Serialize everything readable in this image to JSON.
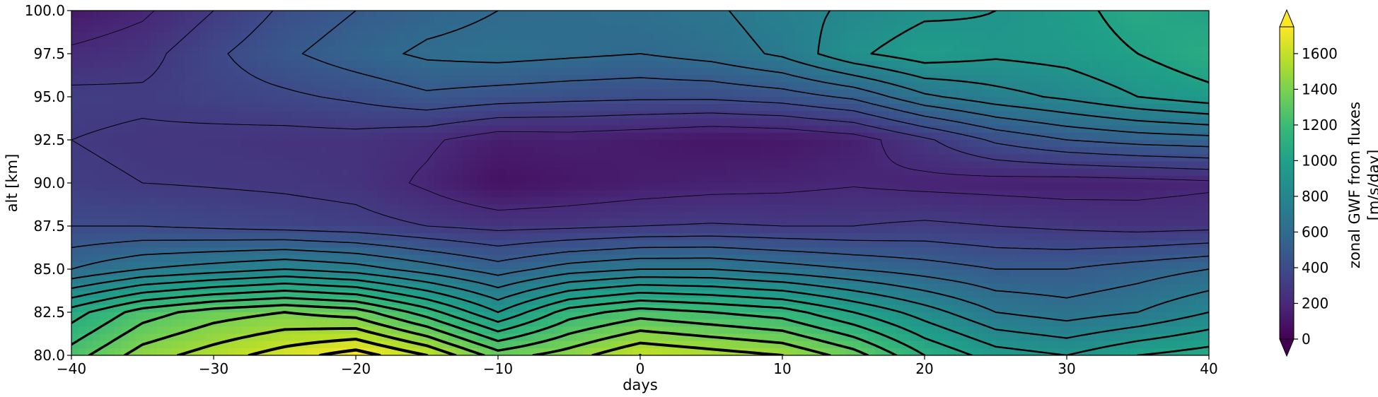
{
  "chart_data": {
    "type": "heatmap",
    "title": "",
    "xlabel": "days",
    "ylabel": "alt [km]",
    "xlim": [
      -40,
      40
    ],
    "ylim": [
      80,
      100
    ],
    "x_ticks": [
      "−40",
      "−30",
      "−20",
      "−10",
      "0",
      "10",
      "20",
      "30",
      "40"
    ],
    "x_tick_values": [
      -40,
      -30,
      -20,
      -10,
      0,
      10,
      20,
      30,
      40
    ],
    "y_ticks": [
      "80.0",
      "82.5",
      "85.0",
      "87.5",
      "90.0",
      "92.5",
      "95.0",
      "97.5",
      "100.0"
    ],
    "y_tick_values": [
      80,
      82.5,
      85,
      87.5,
      90,
      92.5,
      95,
      97.5,
      100
    ],
    "colorbar": {
      "label_line1": "zonal GWF from fluxes",
      "label_line2": "[m/s/day]",
      "colormap": "viridis",
      "range": [
        0,
        1750
      ],
      "extend": "both",
      "ticks": [
        "0",
        "200",
        "400",
        "600",
        "800",
        "1000",
        "1200",
        "1400",
        "1600"
      ],
      "tick_values": [
        0,
        200,
        400,
        600,
        800,
        1000,
        1200,
        1400,
        1600
      ]
    },
    "grid_x": [
      -40,
      -35,
      -30,
      -25,
      -20,
      -15,
      -10,
      -5,
      0,
      5,
      10,
      15,
      20,
      25,
      30,
      35,
      40
    ],
    "grid_y": [
      80,
      82.5,
      85,
      87.5,
      90,
      92.5,
      95,
      97.5,
      100
    ],
    "z": [
      [
        1250,
        1450,
        1550,
        1650,
        1750,
        1600,
        1350,
        1450,
        1600,
        1550,
        1500,
        1350,
        1100,
        950,
        900,
        1000,
        1050
      ],
      [
        1050,
        1250,
        1350,
        1400,
        1350,
        1150,
        900,
        1150,
        1250,
        1200,
        1150,
        1000,
        850,
        700,
        650,
        700,
        800
      ],
      [
        600,
        700,
        750,
        800,
        750,
        650,
        550,
        650,
        700,
        700,
        650,
        600,
        550,
        500,
        500,
        550,
        600
      ],
      [
        400,
        400,
        380,
        360,
        340,
        300,
        270,
        280,
        300,
        310,
        300,
        300,
        320,
        300,
        280,
        260,
        270
      ],
      [
        320,
        300,
        290,
        280,
        260,
        180,
        80,
        110,
        140,
        160,
        170,
        190,
        170,
        160,
        150,
        160,
        180
      ],
      [
        300,
        280,
        270,
        260,
        260,
        220,
        140,
        150,
        130,
        100,
        110,
        150,
        280,
        420,
        500,
        540,
        560
      ],
      [
        330,
        320,
        350,
        380,
        420,
        480,
        450,
        430,
        420,
        420,
        450,
        520,
        680,
        760,
        820,
        900,
        960
      ],
      [
        220,
        260,
        380,
        480,
        560,
        620,
        640,
        620,
        600,
        640,
        720,
        880,
        960,
        920,
        940,
        1000,
        1080
      ],
      [
        120,
        180,
        300,
        420,
        500,
        560,
        600,
        620,
        640,
        680,
        760,
        820,
        880,
        900,
        960,
        1050,
        1000
      ]
    ]
  }
}
